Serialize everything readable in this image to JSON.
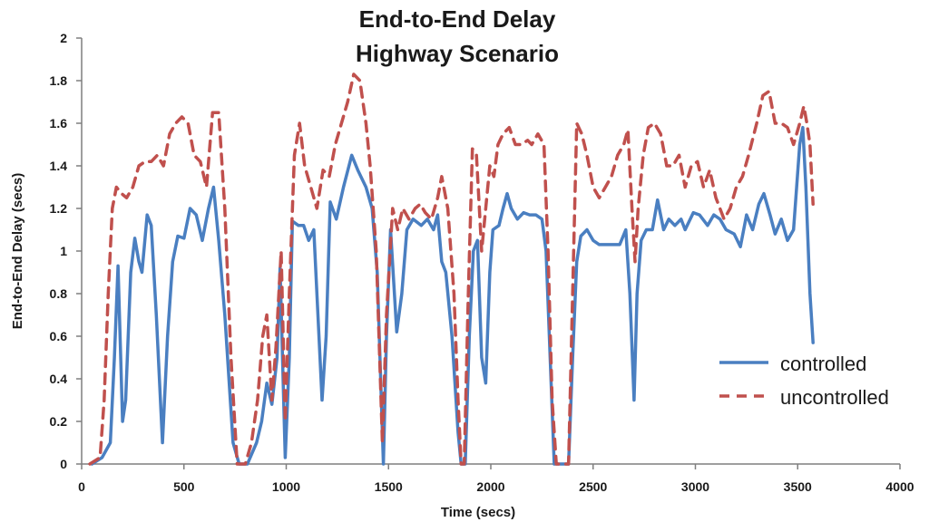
{
  "chart_data": {
    "type": "line",
    "title": "End-to-End Delay",
    "subtitle": "Highway Scenario",
    "xlabel": "Time (secs)",
    "ylabel": "End-to-End Delay (secs)",
    "xlim": [
      0,
      4000
    ],
    "ylim": [
      0,
      2
    ],
    "xticks": [
      0,
      500,
      1000,
      1500,
      2000,
      2500,
      3000,
      3500,
      4000
    ],
    "yticks": [
      0,
      0.2,
      0.4,
      0.6,
      0.8,
      1,
      1.2,
      1.4,
      1.6,
      1.8,
      2
    ],
    "ytick_labels": [
      "0",
      "0.2",
      "0.4",
      "0.6",
      "0.8",
      "1",
      "1.2",
      "1.4",
      "1.6",
      "1.8",
      "2"
    ],
    "xtick_labels": [
      "0",
      "500",
      "1000",
      "1500",
      "2000",
      "2500",
      "3000",
      "3500",
      "4000"
    ],
    "grid": false,
    "legend_position": "right",
    "series": [
      {
        "name": "controlled",
        "color": "#4a7fc1",
        "dash": "solid",
        "points": [
          [
            50,
            0.0
          ],
          [
            100,
            0.03
          ],
          [
            140,
            0.1
          ],
          [
            160,
            0.5
          ],
          [
            178,
            0.93
          ],
          [
            200,
            0.2
          ],
          [
            215,
            0.3
          ],
          [
            240,
            0.9
          ],
          [
            260,
            1.06
          ],
          [
            280,
            0.95
          ],
          [
            295,
            0.9
          ],
          [
            320,
            1.17
          ],
          [
            340,
            1.12
          ],
          [
            365,
            0.7
          ],
          [
            395,
            0.1
          ],
          [
            420,
            0.6
          ],
          [
            445,
            0.95
          ],
          [
            470,
            1.07
          ],
          [
            500,
            1.06
          ],
          [
            530,
            1.2
          ],
          [
            560,
            1.17
          ],
          [
            590,
            1.05
          ],
          [
            620,
            1.2
          ],
          [
            645,
            1.3
          ],
          [
            670,
            1.05
          ],
          [
            700,
            0.7
          ],
          [
            740,
            0.1
          ],
          [
            770,
            0.0
          ],
          [
            810,
            0.0
          ],
          [
            855,
            0.1
          ],
          [
            880,
            0.2
          ],
          [
            905,
            0.38
          ],
          [
            930,
            0.28
          ],
          [
            955,
            0.5
          ],
          [
            970,
            0.92
          ],
          [
            995,
            0.03
          ],
          [
            1015,
            0.5
          ],
          [
            1030,
            1.14
          ],
          [
            1060,
            1.12
          ],
          [
            1085,
            1.12
          ],
          [
            1110,
            1.05
          ],
          [
            1135,
            1.1
          ],
          [
            1175,
            0.3
          ],
          [
            1195,
            0.6
          ],
          [
            1215,
            1.23
          ],
          [
            1245,
            1.15
          ],
          [
            1280,
            1.3
          ],
          [
            1320,
            1.45
          ],
          [
            1350,
            1.38
          ],
          [
            1390,
            1.3
          ],
          [
            1420,
            1.2
          ],
          [
            1445,
            0.9
          ],
          [
            1475,
            0.0
          ],
          [
            1490,
            0.6
          ],
          [
            1510,
            1.1
          ],
          [
            1540,
            0.62
          ],
          [
            1565,
            0.8
          ],
          [
            1590,
            1.1
          ],
          [
            1620,
            1.15
          ],
          [
            1660,
            1.12
          ],
          [
            1690,
            1.15
          ],
          [
            1720,
            1.1
          ],
          [
            1740,
            1.17
          ],
          [
            1760,
            0.95
          ],
          [
            1780,
            0.9
          ],
          [
            1810,
            0.6
          ],
          [
            1840,
            0.15
          ],
          [
            1855,
            0.0
          ],
          [
            1875,
            0.0
          ],
          [
            1895,
            0.6
          ],
          [
            1915,
            1.0
          ],
          [
            1935,
            1.05
          ],
          [
            1955,
            0.5
          ],
          [
            1975,
            0.38
          ],
          [
            1995,
            0.9
          ],
          [
            2010,
            1.1
          ],
          [
            2040,
            1.12
          ],
          [
            2060,
            1.2
          ],
          [
            2080,
            1.27
          ],
          [
            2100,
            1.2
          ],
          [
            2130,
            1.15
          ],
          [
            2160,
            1.18
          ],
          [
            2190,
            1.17
          ],
          [
            2220,
            1.17
          ],
          [
            2250,
            1.15
          ],
          [
            2270,
            1.0
          ],
          [
            2290,
            0.5
          ],
          [
            2310,
            0.0
          ],
          [
            2380,
            0.0
          ],
          [
            2400,
            0.5
          ],
          [
            2420,
            0.95
          ],
          [
            2440,
            1.07
          ],
          [
            2470,
            1.1
          ],
          [
            2500,
            1.05
          ],
          [
            2530,
            1.03
          ],
          [
            2560,
            1.03
          ],
          [
            2590,
            1.03
          ],
          [
            2630,
            1.03
          ],
          [
            2660,
            1.1
          ],
          [
            2680,
            0.8
          ],
          [
            2700,
            0.3
          ],
          [
            2715,
            0.8
          ],
          [
            2735,
            1.05
          ],
          [
            2760,
            1.1
          ],
          [
            2790,
            1.1
          ],
          [
            2815,
            1.24
          ],
          [
            2845,
            1.1
          ],
          [
            2870,
            1.15
          ],
          [
            2900,
            1.12
          ],
          [
            2930,
            1.15
          ],
          [
            2950,
            1.1
          ],
          [
            2990,
            1.18
          ],
          [
            3020,
            1.17
          ],
          [
            3060,
            1.12
          ],
          [
            3090,
            1.17
          ],
          [
            3120,
            1.15
          ],
          [
            3150,
            1.1
          ],
          [
            3190,
            1.08
          ],
          [
            3220,
            1.02
          ],
          [
            3250,
            1.17
          ],
          [
            3280,
            1.1
          ],
          [
            3310,
            1.22
          ],
          [
            3335,
            1.27
          ],
          [
            3365,
            1.17
          ],
          [
            3390,
            1.08
          ],
          [
            3420,
            1.15
          ],
          [
            3450,
            1.05
          ],
          [
            3480,
            1.1
          ],
          [
            3510,
            1.5
          ],
          [
            3525,
            1.58
          ],
          [
            3540,
            1.3
          ],
          [
            3560,
            0.8
          ],
          [
            3575,
            0.57
          ]
        ]
      },
      {
        "name": "uncontrolled",
        "color": "#c0504d",
        "dash": "dashed",
        "points": [
          [
            40,
            0.0
          ],
          [
            90,
            0.03
          ],
          [
            110,
            0.3
          ],
          [
            130,
            0.8
          ],
          [
            150,
            1.2
          ],
          [
            170,
            1.3
          ],
          [
            195,
            1.27
          ],
          [
            220,
            1.25
          ],
          [
            250,
            1.3
          ],
          [
            280,
            1.4
          ],
          [
            310,
            1.42
          ],
          [
            340,
            1.42
          ],
          [
            370,
            1.45
          ],
          [
            400,
            1.4
          ],
          [
            430,
            1.55
          ],
          [
            460,
            1.6
          ],
          [
            490,
            1.63
          ],
          [
            520,
            1.6
          ],
          [
            550,
            1.45
          ],
          [
            580,
            1.42
          ],
          [
            610,
            1.3
          ],
          [
            640,
            1.65
          ],
          [
            670,
            1.65
          ],
          [
            700,
            1.2
          ],
          [
            730,
            0.5
          ],
          [
            760,
            0.0
          ],
          [
            800,
            0.0
          ],
          [
            830,
            0.1
          ],
          [
            860,
            0.3
          ],
          [
            885,
            0.6
          ],
          [
            905,
            0.7
          ],
          [
            930,
            0.3
          ],
          [
            950,
            0.55
          ],
          [
            975,
            1.0
          ],
          [
            995,
            0.2
          ],
          [
            1015,
            0.8
          ],
          [
            1040,
            1.45
          ],
          [
            1065,
            1.6
          ],
          [
            1090,
            1.4
          ],
          [
            1120,
            1.3
          ],
          [
            1150,
            1.2
          ],
          [
            1180,
            1.38
          ],
          [
            1210,
            1.35
          ],
          [
            1240,
            1.5
          ],
          [
            1270,
            1.6
          ],
          [
            1300,
            1.7
          ],
          [
            1330,
            1.83
          ],
          [
            1360,
            1.8
          ],
          [
            1390,
            1.6
          ],
          [
            1410,
            1.4
          ],
          [
            1440,
            1.0
          ],
          [
            1470,
            0.1
          ],
          [
            1490,
            0.7
          ],
          [
            1520,
            1.2
          ],
          [
            1545,
            1.1
          ],
          [
            1570,
            1.2
          ],
          [
            1600,
            1.15
          ],
          [
            1630,
            1.2
          ],
          [
            1655,
            1.22
          ],
          [
            1680,
            1.18
          ],
          [
            1710,
            1.15
          ],
          [
            1740,
            1.25
          ],
          [
            1760,
            1.35
          ],
          [
            1790,
            1.2
          ],
          [
            1820,
            0.8
          ],
          [
            1840,
            0.3
          ],
          [
            1855,
            0.0
          ],
          [
            1870,
            0.0
          ],
          [
            1890,
            0.8
          ],
          [
            1910,
            1.48
          ],
          [
            1930,
            1.45
          ],
          [
            1955,
            1.0
          ],
          [
            1975,
            1.2
          ],
          [
            1995,
            1.4
          ],
          [
            2015,
            1.35
          ],
          [
            2035,
            1.5
          ],
          [
            2060,
            1.55
          ],
          [
            2090,
            1.58
          ],
          [
            2120,
            1.5
          ],
          [
            2150,
            1.5
          ],
          [
            2180,
            1.52
          ],
          [
            2200,
            1.5
          ],
          [
            2230,
            1.55
          ],
          [
            2260,
            1.5
          ],
          [
            2280,
            1.0
          ],
          [
            2300,
            0.3
          ],
          [
            2320,
            0.0
          ],
          [
            2380,
            0.0
          ],
          [
            2400,
            0.8
          ],
          [
            2420,
            1.6
          ],
          [
            2445,
            1.55
          ],
          [
            2470,
            1.45
          ],
          [
            2500,
            1.3
          ],
          [
            2530,
            1.25
          ],
          [
            2560,
            1.3
          ],
          [
            2590,
            1.35
          ],
          [
            2620,
            1.45
          ],
          [
            2650,
            1.5
          ],
          [
            2670,
            1.57
          ],
          [
            2690,
            1.2
          ],
          [
            2705,
            0.95
          ],
          [
            2720,
            1.2
          ],
          [
            2745,
            1.45
          ],
          [
            2770,
            1.58
          ],
          [
            2800,
            1.6
          ],
          [
            2830,
            1.55
          ],
          [
            2860,
            1.4
          ],
          [
            2890,
            1.4
          ],
          [
            2920,
            1.45
          ],
          [
            2950,
            1.3
          ],
          [
            2980,
            1.4
          ],
          [
            3010,
            1.42
          ],
          [
            3040,
            1.3
          ],
          [
            3070,
            1.38
          ],
          [
            3100,
            1.25
          ],
          [
            3140,
            1.15
          ],
          [
            3170,
            1.2
          ],
          [
            3200,
            1.3
          ],
          [
            3230,
            1.35
          ],
          [
            3260,
            1.45
          ],
          [
            3300,
            1.6
          ],
          [
            3330,
            1.73
          ],
          [
            3360,
            1.75
          ],
          [
            3390,
            1.6
          ],
          [
            3420,
            1.6
          ],
          [
            3450,
            1.58
          ],
          [
            3480,
            1.5
          ],
          [
            3510,
            1.6
          ],
          [
            3530,
            1.68
          ],
          [
            3545,
            1.6
          ],
          [
            3560,
            1.5
          ],
          [
            3575,
            1.22
          ]
        ]
      }
    ]
  }
}
